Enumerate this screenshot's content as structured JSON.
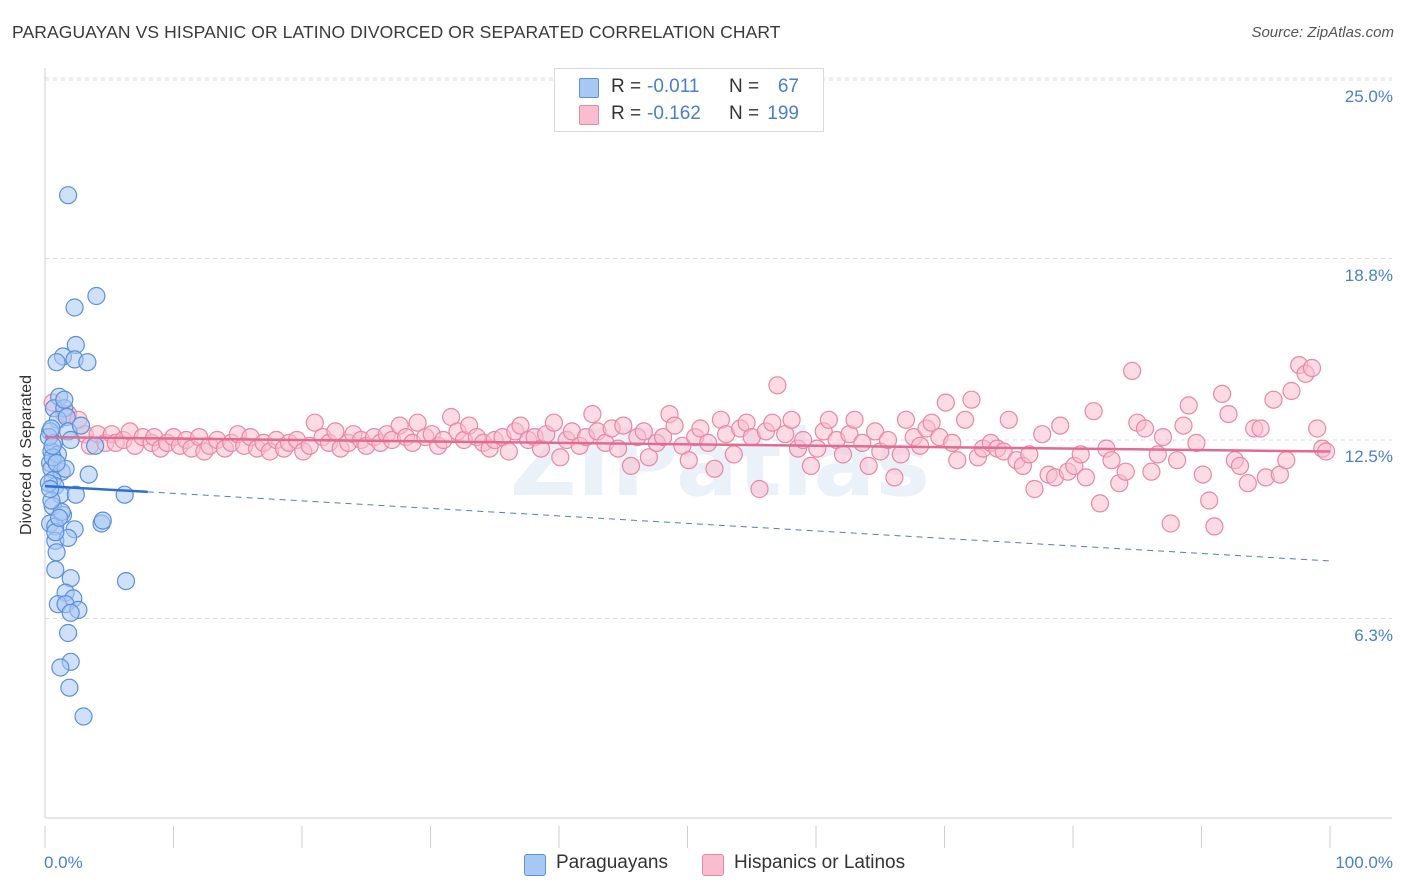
{
  "title": "PARAGUAYAN VS HISPANIC OR LATINO DIVORCED OR SEPARATED CORRELATION CHART",
  "source": "Source: ZipAtlas.com",
  "watermark": "ZIPatlas",
  "stats": {
    "r_label": "R =",
    "n_label": "N =",
    "rows": [
      {
        "r": "-0.011",
        "n": "67",
        "color": "#a8c8f4",
        "border": "#5b8fd8"
      },
      {
        "r": "-0.162",
        "n": "199",
        "color": "#f9bdd0",
        "border": "#e887a6"
      }
    ]
  },
  "legend": [
    {
      "label": "Paraguayans",
      "color": "#a8c8f4",
      "border": "#5b8fd8"
    },
    {
      "label": "Hispanics or Latinos",
      "color": "#f9bdd0",
      "border": "#e887a6"
    }
  ],
  "chart_data": {
    "type": "scatter",
    "title": "PARAGUAYAN VS HISPANIC OR LATINO DIVORCED OR SEPARATED CORRELATION CHART",
    "xlabel": "",
    "ylabel": "Divorced or Separated",
    "xlim": [
      0,
      100
    ],
    "ylim": [
      0,
      26.5
    ],
    "x_tick_labels": [
      {
        "value": 0,
        "label": "0.0%"
      },
      {
        "value": 100,
        "label": "100.0%"
      }
    ],
    "y_tick_labels": [
      {
        "value": 6.3,
        "label": "6.3%"
      },
      {
        "value": 12.5,
        "label": "12.5%"
      },
      {
        "value": 18.8,
        "label": "18.8%"
      },
      {
        "value": 25.0,
        "label": "25.0%"
      }
    ],
    "grid": true,
    "series": [
      {
        "name": "Paraguayans",
        "color": "#5b8fd8",
        "fill": "#a8c8f4",
        "trend": {
          "x0": 0,
          "y0": 10.9,
          "x1": 8,
          "y1": 10.7,
          "dashed_x1": 100,
          "dashed_y1": 8.3
        },
        "points": [
          [
            1.8,
            21.0
          ],
          [
            2.3,
            17.1
          ],
          [
            4.0,
            17.5
          ],
          [
            2.4,
            15.8
          ],
          [
            1.4,
            15.4
          ],
          [
            2.3,
            15.3
          ],
          [
            0.9,
            15.2
          ],
          [
            3.3,
            15.2
          ],
          [
            1.1,
            14.0
          ],
          [
            0.7,
            13.6
          ],
          [
            1.5,
            13.6
          ],
          [
            1.0,
            13.2
          ],
          [
            1.7,
            13.3
          ],
          [
            0.4,
            12.8
          ],
          [
            0.7,
            12.4
          ],
          [
            1.8,
            12.8
          ],
          [
            0.5,
            12.1
          ],
          [
            0.3,
            12.6
          ],
          [
            3.9,
            12.3
          ],
          [
            0.4,
            11.7
          ],
          [
            0.5,
            11.5
          ],
          [
            1.3,
            11.4
          ],
          [
            3.4,
            11.3
          ],
          [
            0.6,
            11.1
          ],
          [
            0.8,
            10.9
          ],
          [
            1.2,
            10.6
          ],
          [
            2.4,
            10.6
          ],
          [
            6.2,
            10.6
          ],
          [
            0.6,
            10.2
          ],
          [
            1.4,
            9.9
          ],
          [
            0.4,
            9.6
          ],
          [
            0.8,
            9.5
          ],
          [
            2.3,
            9.4
          ],
          [
            4.4,
            9.6
          ],
          [
            4.5,
            9.7
          ],
          [
            0.8,
            9.0
          ],
          [
            1.8,
            9.1
          ],
          [
            0.9,
            8.6
          ],
          [
            0.8,
            8.0
          ],
          [
            2.0,
            7.7
          ],
          [
            6.3,
            7.6
          ],
          [
            1.6,
            7.2
          ],
          [
            2.2,
            7.0
          ],
          [
            1.0,
            6.8
          ],
          [
            1.6,
            6.8
          ],
          [
            2.6,
            6.6
          ],
          [
            2.0,
            6.5
          ],
          [
            1.8,
            5.8
          ],
          [
            2.0,
            4.8
          ],
          [
            1.2,
            4.6
          ],
          [
            1.9,
            3.9
          ],
          [
            3.0,
            2.9
          ],
          [
            0.5,
            12.9
          ],
          [
            1.0,
            12.0
          ],
          [
            0.6,
            11.9
          ],
          [
            1.3,
            10.0
          ],
          [
            0.8,
            9.3
          ],
          [
            0.5,
            10.4
          ],
          [
            1.1,
            9.8
          ],
          [
            2.0,
            12.5
          ],
          [
            0.3,
            11.0
          ],
          [
            1.6,
            11.5
          ],
          [
            0.9,
            11.7
          ],
          [
            0.4,
            10.8
          ],
          [
            1.5,
            13.9
          ],
          [
            0.6,
            12.3
          ],
          [
            2.8,
            13.0
          ]
        ]
      },
      {
        "name": "Hispanics or Latinos",
        "color": "#e887a6",
        "fill": "#f9bdd0",
        "trend": {
          "x0": 0,
          "y0": 12.6,
          "x1": 100,
          "y1": 12.1
        },
        "points": [
          [
            0.6,
            13.8
          ],
          [
            1.5,
            13.4
          ],
          [
            1.8,
            13.4
          ],
          [
            2.6,
            13.2
          ],
          [
            3.1,
            12.7
          ],
          [
            3.5,
            12.3
          ],
          [
            4.1,
            12.7
          ],
          [
            4.7,
            12.4
          ],
          [
            5.2,
            12.7
          ],
          [
            5.5,
            12.4
          ],
          [
            6.1,
            12.5
          ],
          [
            6.6,
            12.8
          ],
          [
            7.0,
            12.3
          ],
          [
            7.6,
            12.6
          ],
          [
            8.3,
            12.4
          ],
          [
            8.5,
            12.6
          ],
          [
            9.0,
            12.2
          ],
          [
            9.5,
            12.4
          ],
          [
            10.0,
            12.6
          ],
          [
            10.5,
            12.3
          ],
          [
            11.0,
            12.5
          ],
          [
            11.4,
            12.2
          ],
          [
            12.0,
            12.6
          ],
          [
            12.4,
            12.1
          ],
          [
            12.8,
            12.3
          ],
          [
            13.4,
            12.5
          ],
          [
            14.0,
            12.2
          ],
          [
            14.5,
            12.4
          ],
          [
            15.0,
            12.7
          ],
          [
            15.5,
            12.3
          ],
          [
            16.0,
            12.6
          ],
          [
            16.5,
            12.2
          ],
          [
            17.0,
            12.4
          ],
          [
            17.5,
            12.1
          ],
          [
            18.0,
            12.5
          ],
          [
            18.6,
            12.2
          ],
          [
            19.0,
            12.4
          ],
          [
            19.6,
            12.5
          ],
          [
            20.1,
            12.1
          ],
          [
            20.6,
            12.3
          ],
          [
            21.0,
            13.1
          ],
          [
            21.6,
            12.6
          ],
          [
            22.1,
            12.4
          ],
          [
            22.6,
            12.8
          ],
          [
            23.0,
            12.2
          ],
          [
            23.6,
            12.4
          ],
          [
            24.0,
            12.7
          ],
          [
            24.6,
            12.5
          ],
          [
            25.0,
            12.3
          ],
          [
            25.6,
            12.6
          ],
          [
            26.1,
            12.4
          ],
          [
            26.6,
            12.7
          ],
          [
            27.0,
            12.5
          ],
          [
            27.6,
            13.0
          ],
          [
            28.1,
            12.6
          ],
          [
            28.6,
            12.4
          ],
          [
            29.0,
            13.1
          ],
          [
            29.6,
            12.6
          ],
          [
            30.1,
            12.7
          ],
          [
            30.6,
            12.3
          ],
          [
            31.0,
            12.5
          ],
          [
            31.6,
            13.3
          ],
          [
            32.1,
            12.8
          ],
          [
            32.6,
            12.5
          ],
          [
            33.0,
            13.0
          ],
          [
            33.6,
            12.6
          ],
          [
            34.1,
            12.4
          ],
          [
            34.6,
            12.2
          ],
          [
            35.0,
            12.5
          ],
          [
            35.6,
            12.6
          ],
          [
            36.1,
            12.1
          ],
          [
            36.6,
            12.8
          ],
          [
            37.0,
            13.0
          ],
          [
            37.6,
            12.5
          ],
          [
            38.1,
            12.6
          ],
          [
            38.6,
            12.2
          ],
          [
            39.0,
            12.7
          ],
          [
            39.6,
            13.1
          ],
          [
            40.1,
            11.9
          ],
          [
            40.6,
            12.5
          ],
          [
            41.0,
            12.8
          ],
          [
            41.6,
            12.3
          ],
          [
            42.1,
            12.6
          ],
          [
            42.6,
            13.4
          ],
          [
            43.0,
            12.8
          ],
          [
            43.6,
            12.4
          ],
          [
            44.1,
            12.9
          ],
          [
            44.6,
            12.2
          ],
          [
            45.0,
            13.0
          ],
          [
            45.6,
            11.6
          ],
          [
            46.1,
            12.6
          ],
          [
            46.6,
            12.8
          ],
          [
            47.0,
            11.9
          ],
          [
            47.6,
            12.4
          ],
          [
            48.1,
            12.6
          ],
          [
            48.6,
            13.4
          ],
          [
            49.0,
            13.0
          ],
          [
            49.6,
            12.3
          ],
          [
            50.1,
            11.8
          ],
          [
            50.6,
            12.6
          ],
          [
            51.0,
            12.9
          ],
          [
            51.6,
            12.4
          ],
          [
            52.1,
            11.5
          ],
          [
            52.6,
            13.2
          ],
          [
            53.0,
            12.7
          ],
          [
            53.6,
            12.0
          ],
          [
            54.1,
            12.9
          ],
          [
            54.6,
            13.1
          ],
          [
            55.0,
            12.6
          ],
          [
            55.6,
            10.8
          ],
          [
            56.1,
            12.8
          ],
          [
            56.6,
            13.1
          ],
          [
            57.0,
            14.4
          ],
          [
            57.6,
            12.7
          ],
          [
            58.1,
            13.2
          ],
          [
            58.6,
            12.2
          ],
          [
            59.0,
            12.5
          ],
          [
            59.6,
            11.6
          ],
          [
            60.1,
            12.2
          ],
          [
            60.6,
            12.8
          ],
          [
            61.0,
            13.2
          ],
          [
            61.6,
            12.5
          ],
          [
            62.1,
            12.0
          ],
          [
            62.6,
            12.7
          ],
          [
            63.0,
            13.2
          ],
          [
            63.6,
            12.4
          ],
          [
            64.1,
            11.6
          ],
          [
            64.6,
            12.8
          ],
          [
            65.0,
            12.1
          ],
          [
            65.6,
            12.5
          ],
          [
            66.1,
            11.2
          ],
          [
            66.6,
            12.0
          ],
          [
            67.0,
            13.2
          ],
          [
            67.6,
            12.6
          ],
          [
            68.1,
            12.3
          ],
          [
            68.6,
            12.9
          ],
          [
            69.0,
            13.1
          ],
          [
            69.6,
            12.6
          ],
          [
            70.1,
            13.8
          ],
          [
            70.6,
            12.4
          ],
          [
            71.0,
            11.8
          ],
          [
            71.6,
            13.2
          ],
          [
            72.1,
            13.9
          ],
          [
            72.6,
            11.9
          ],
          [
            73.0,
            12.2
          ],
          [
            73.6,
            12.4
          ],
          [
            74.1,
            12.2
          ],
          [
            74.6,
            12.1
          ],
          [
            75.0,
            13.2
          ],
          [
            75.6,
            11.8
          ],
          [
            76.1,
            11.6
          ],
          [
            76.6,
            12.0
          ],
          [
            77.0,
            10.8
          ],
          [
            77.6,
            12.7
          ],
          [
            78.1,
            11.3
          ],
          [
            78.6,
            11.2
          ],
          [
            79.0,
            13.0
          ],
          [
            79.6,
            11.4
          ],
          [
            80.1,
            11.6
          ],
          [
            80.6,
            12.0
          ],
          [
            81.0,
            11.2
          ],
          [
            81.6,
            13.5
          ],
          [
            82.1,
            10.3
          ],
          [
            82.6,
            12.2
          ],
          [
            83.0,
            11.8
          ],
          [
            83.6,
            11.0
          ],
          [
            84.1,
            11.4
          ],
          [
            84.6,
            14.9
          ],
          [
            85.0,
            13.1
          ],
          [
            85.6,
            12.9
          ],
          [
            86.1,
            11.4
          ],
          [
            86.6,
            12.0
          ],
          [
            87.0,
            12.6
          ],
          [
            87.6,
            9.6
          ],
          [
            88.1,
            11.8
          ],
          [
            88.6,
            13.0
          ],
          [
            89.0,
            13.7
          ],
          [
            89.6,
            12.4
          ],
          [
            90.1,
            11.3
          ],
          [
            90.6,
            10.4
          ],
          [
            91.0,
            9.5
          ],
          [
            91.6,
            14.1
          ],
          [
            92.1,
            13.4
          ],
          [
            92.6,
            11.8
          ],
          [
            93.0,
            11.6
          ],
          [
            93.6,
            11.0
          ],
          [
            94.1,
            12.9
          ],
          [
            94.6,
            12.9
          ],
          [
            95.0,
            11.2
          ],
          [
            95.6,
            13.9
          ],
          [
            96.1,
            11.3
          ],
          [
            96.6,
            11.8
          ],
          [
            97.0,
            14.2
          ],
          [
            97.6,
            15.1
          ],
          [
            98.1,
            14.8
          ],
          [
            98.6,
            15.0
          ],
          [
            99.0,
            12.9
          ],
          [
            99.4,
            12.2
          ],
          [
            99.7,
            12.1
          ]
        ]
      }
    ]
  }
}
